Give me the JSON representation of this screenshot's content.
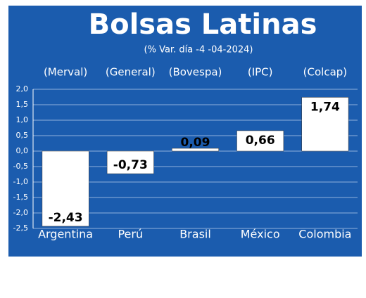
{
  "chart_data": {
    "type": "bar",
    "title": "Bolsas Latinas",
    "subtitle": "(% Var. día -4 -04-2024)",
    "categories": [
      "Argentina",
      "Perú",
      "Brasil",
      "México",
      "Colombia"
    ],
    "indices": [
      "(Merval)",
      "(General)",
      "(Bovespa)",
      "(IPC)",
      "(Colcap)"
    ],
    "values": [
      -2.43,
      -0.73,
      0.09,
      0.66,
      1.74
    ],
    "value_labels": [
      "-2,43",
      "-0,73",
      "0,09",
      "0,66",
      "1,74"
    ],
    "color": "#ffffff",
    "background": "#1b5cae",
    "ylim": [
      -2.5,
      2
    ],
    "yticks": [
      {
        "value": 2,
        "label": "2,0"
      },
      {
        "value": 1.5,
        "label": "1,5"
      },
      {
        "value": 1,
        "label": "1,0"
      },
      {
        "value": 0.5,
        "label": "0,5"
      },
      {
        "value": 0,
        "label": "0,0"
      },
      {
        "value": -0.5,
        "label": "-0,5"
      },
      {
        "value": -1,
        "label": "-1,0"
      },
      {
        "value": -1.5,
        "label": "-1,5"
      },
      {
        "value": -2,
        "label": "-2,0"
      },
      {
        "value": -2.5,
        "label": "-2,5"
      }
    ],
    "grid": true
  }
}
